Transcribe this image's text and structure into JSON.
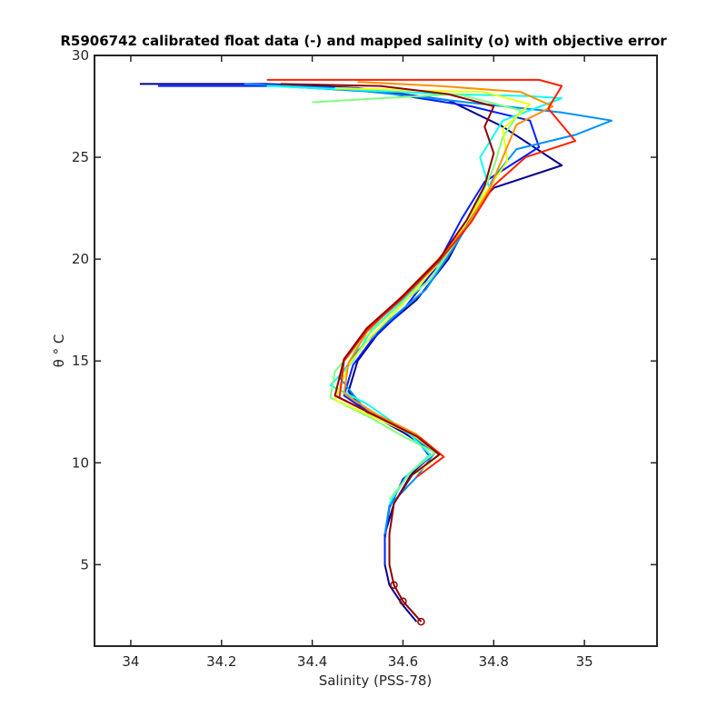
{
  "chart_data": {
    "type": "line",
    "title": "R5906742 calibrated float data (-) and mapped salinity (o) with objective error",
    "xlabel": "Salinity (PSS-78)",
    "ylabel": "θ ° C",
    "xlim": [
      33.92,
      35.16
    ],
    "ylim": [
      1,
      30
    ],
    "xticks": [
      34,
      34.2,
      34.4,
      34.6,
      34.8,
      35
    ],
    "xtick_labels": [
      "34",
      "34.2",
      "34.4",
      "34.6",
      "34.8",
      "35"
    ],
    "yticks": [
      5,
      10,
      15,
      20,
      25,
      30
    ],
    "ytick_labels": [
      "5",
      "10",
      "15",
      "20",
      "25",
      "30"
    ],
    "grid": false,
    "colormap": "jet",
    "colors": [
      "#00008f",
      "#0020ff",
      "#0090ff",
      "#10ffef",
      "#80ff80",
      "#efff10",
      "#ff9000",
      "#ff2000",
      "#8f0000"
    ],
    "series": [
      {
        "values": [
          [
            34.02,
            28.6
          ],
          [
            34.3,
            28.6
          ],
          [
            34.5,
            28.4
          ],
          [
            34.7,
            27.8
          ],
          [
            34.82,
            26.5
          ],
          [
            34.95,
            24.6
          ],
          [
            34.8,
            23.5
          ],
          [
            34.76,
            22.5
          ],
          [
            34.7,
            20
          ],
          [
            34.63,
            18
          ],
          [
            34.55,
            16.5
          ],
          [
            34.5,
            15
          ],
          [
            34.48,
            13.5
          ],
          [
            34.52,
            12.5
          ],
          [
            34.6,
            11.5
          ],
          [
            34.67,
            10.5
          ],
          [
            34.62,
            9.5
          ],
          [
            34.58,
            8
          ],
          [
            34.56,
            6.5
          ],
          [
            34.56,
            5
          ],
          [
            34.57,
            4
          ],
          [
            34.6,
            3
          ],
          [
            34.63,
            2.2
          ]
        ]
      },
      {
        "values": [
          [
            34.06,
            28.5
          ],
          [
            34.32,
            28.5
          ],
          [
            34.55,
            28.2
          ],
          [
            34.75,
            27.5
          ],
          [
            34.88,
            26.8
          ],
          [
            34.9,
            25.5
          ],
          [
            34.78,
            23.8
          ],
          [
            34.73,
            22
          ],
          [
            34.67,
            19.5
          ],
          [
            34.6,
            17.5
          ],
          [
            34.53,
            16
          ],
          [
            34.49,
            14.8
          ],
          [
            34.47,
            13.3
          ],
          [
            34.53,
            12.4
          ],
          [
            34.62,
            11.4
          ],
          [
            34.66,
            10.3
          ],
          [
            34.6,
            9.2
          ],
          [
            34.57,
            7.8
          ],
          [
            34.56,
            6.3
          ],
          [
            34.56,
            5
          ]
        ]
      },
      {
        "values": [
          [
            34.25,
            28.6
          ],
          [
            34.45,
            28.4
          ],
          [
            34.62,
            28
          ],
          [
            34.78,
            27.6
          ],
          [
            34.95,
            27.2
          ],
          [
            35.06,
            26.8
          ],
          [
            34.98,
            26.1
          ],
          [
            34.85,
            25.4
          ],
          [
            34.8,
            24
          ],
          [
            34.77,
            22.6
          ],
          [
            34.71,
            20.5
          ],
          [
            34.65,
            18.5
          ],
          [
            34.57,
            17
          ],
          [
            34.5,
            15.5
          ],
          [
            34.46,
            14.2
          ],
          [
            34.51,
            12.8
          ],
          [
            34.6,
            11.6
          ],
          [
            34.67,
            10.5
          ],
          [
            34.63,
            9.3
          ],
          [
            34.57,
            7.9
          ],
          [
            34.56,
            6.5
          ]
        ]
      },
      {
        "values": [
          [
            34.3,
            28.5
          ],
          [
            34.5,
            28.3
          ],
          [
            34.7,
            28.1
          ],
          [
            34.88,
            28
          ],
          [
            34.95,
            27.9
          ],
          [
            34.82,
            26.8
          ],
          [
            34.77,
            25
          ],
          [
            34.79,
            23.5
          ],
          [
            34.74,
            21.8
          ],
          [
            34.68,
            19.8
          ],
          [
            34.6,
            18
          ],
          [
            34.53,
            16.5
          ],
          [
            34.49,
            15
          ],
          [
            34.44,
            13.8
          ],
          [
            34.52,
            12.9
          ],
          [
            34.61,
            11.5
          ],
          [
            34.66,
            10.4
          ],
          [
            34.61,
            9.4
          ],
          [
            34.57,
            8
          ]
        ]
      },
      {
        "values": [
          [
            34.4,
            27.7
          ],
          [
            34.55,
            27.9
          ],
          [
            34.72,
            28.1
          ],
          [
            34.86,
            27.3
          ],
          [
            34.82,
            26
          ],
          [
            34.8,
            24.5
          ],
          [
            34.77,
            23
          ],
          [
            34.72,
            21
          ],
          [
            34.66,
            19
          ],
          [
            34.58,
            17.5
          ],
          [
            34.51,
            16
          ],
          [
            34.45,
            14.5
          ],
          [
            34.44,
            13.2
          ],
          [
            34.53,
            12.2
          ],
          [
            34.6,
            11.3
          ],
          [
            34.67,
            10.5
          ],
          [
            34.62,
            9.6
          ],
          [
            34.57,
            8.2
          ]
        ]
      },
      {
        "values": [
          [
            34.45,
            28.4
          ],
          [
            34.6,
            28.3
          ],
          [
            34.78,
            28.2
          ],
          [
            34.88,
            27.6
          ],
          [
            34.82,
            26.4
          ],
          [
            34.83,
            24.8
          ],
          [
            34.78,
            23.2
          ],
          [
            34.73,
            21.5
          ],
          [
            34.67,
            19.6
          ],
          [
            34.6,
            17.8
          ],
          [
            34.53,
            16.2
          ],
          [
            34.48,
            14.8
          ],
          [
            34.45,
            13.1
          ],
          [
            34.53,
            12.3
          ],
          [
            34.62,
            11.4
          ],
          [
            34.68,
            10.4
          ],
          [
            34.63,
            9.5
          ]
        ]
      },
      {
        "values": [
          [
            34.5,
            28.7
          ],
          [
            34.68,
            28.5
          ],
          [
            34.86,
            28.2
          ],
          [
            34.93,
            27.5
          ],
          [
            34.85,
            26.6
          ],
          [
            34.82,
            25
          ],
          [
            34.79,
            23.4
          ],
          [
            34.74,
            21.6
          ],
          [
            34.67,
            19.8
          ],
          [
            34.59,
            18
          ],
          [
            34.52,
            16.4
          ],
          [
            34.48,
            14.9
          ],
          [
            34.47,
            13.4
          ],
          [
            34.54,
            12.4
          ],
          [
            34.63,
            11.4
          ],
          [
            34.68,
            10.4
          ],
          [
            34.62,
            9.4
          ]
        ]
      },
      {
        "values": [
          [
            34.3,
            28.8
          ],
          [
            34.6,
            28.8
          ],
          [
            34.9,
            28.8
          ],
          [
            34.95,
            28.5
          ],
          [
            34.92,
            27.4
          ],
          [
            34.98,
            25.8
          ],
          [
            34.87,
            25
          ],
          [
            34.8,
            23.6
          ],
          [
            34.75,
            21.8
          ],
          [
            34.68,
            19.9
          ],
          [
            34.6,
            18.1
          ],
          [
            34.52,
            16.5
          ],
          [
            34.47,
            15
          ],
          [
            34.46,
            13.2
          ],
          [
            34.55,
            12.2
          ],
          [
            34.64,
            11.2
          ],
          [
            34.69,
            10.3
          ],
          [
            34.63,
            9.3
          ]
        ]
      },
      {
        "values": [
          [
            34.33,
            28.6
          ],
          [
            34.55,
            28.5
          ],
          [
            34.7,
            28.1
          ],
          [
            34.8,
            27.5
          ],
          [
            34.78,
            26.5
          ],
          [
            34.8,
            25.2
          ],
          [
            34.78,
            23.6
          ],
          [
            34.74,
            21.9
          ],
          [
            34.68,
            20
          ],
          [
            34.6,
            18.2
          ],
          [
            34.52,
            16.6
          ],
          [
            34.47,
            15.1
          ],
          [
            34.45,
            13.3
          ],
          [
            34.54,
            12.3
          ],
          [
            34.63,
            11.3
          ],
          [
            34.68,
            10.4
          ],
          [
            34.62,
            9.4
          ],
          [
            34.58,
            8
          ],
          [
            34.57,
            6.5
          ],
          [
            34.57,
            5
          ],
          [
            34.58,
            4
          ],
          [
            34.6,
            3.2
          ],
          [
            34.64,
            2.2
          ]
        ]
      }
    ]
  }
}
